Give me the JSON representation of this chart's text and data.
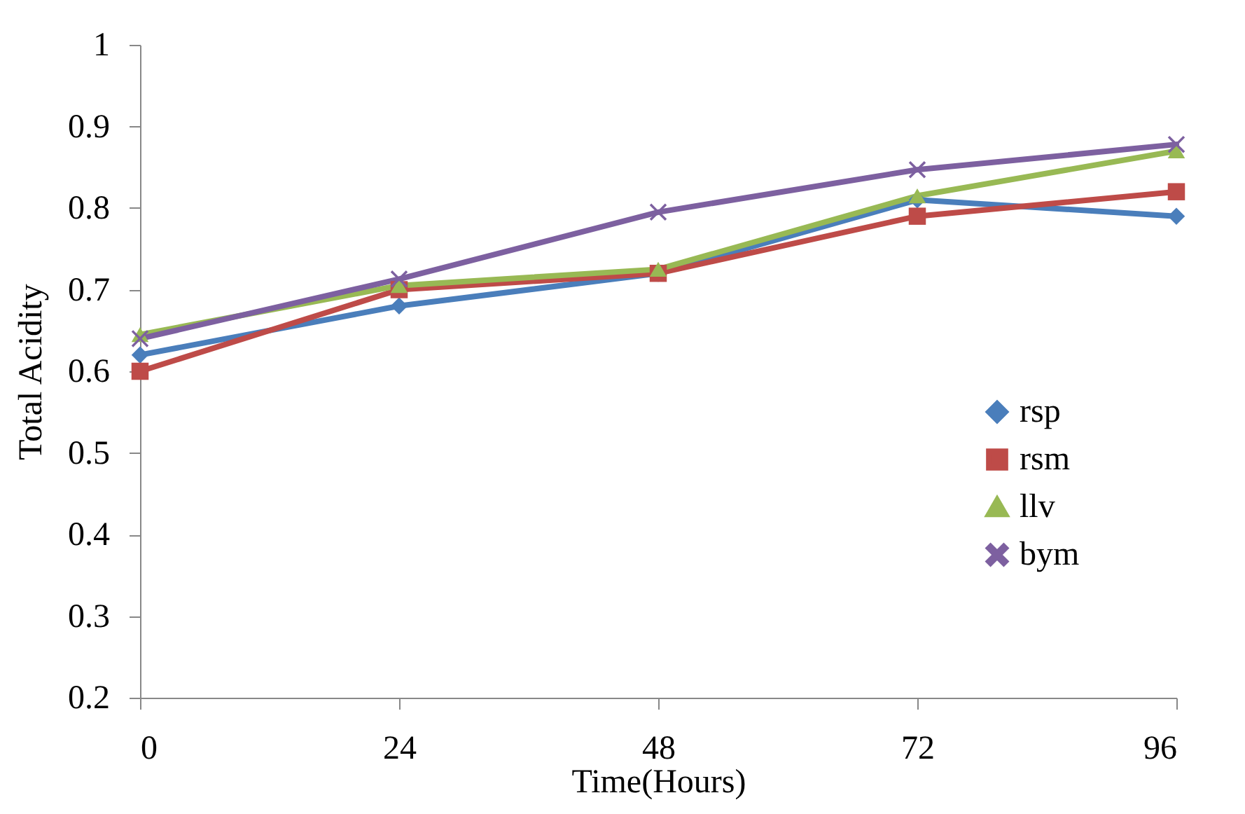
{
  "chart_data": {
    "type": "line",
    "xlabel": "Time(Hours)",
    "ylabel": "Total Acidity",
    "x": [
      0,
      24,
      48,
      72,
      96
    ],
    "series": [
      {
        "name": "rsp",
        "color": "#4a7ebb",
        "marker": "diamond",
        "values": [
          0.62,
          0.68,
          0.72,
          0.81,
          0.79
        ]
      },
      {
        "name": "rsm",
        "color": "#be4b48",
        "marker": "square",
        "values": [
          0.6,
          0.7,
          0.72,
          0.79,
          0.82
        ]
      },
      {
        "name": "llv",
        "color": "#98b954",
        "marker": "triangle",
        "values": [
          0.645,
          0.705,
          0.725,
          0.815,
          0.87
        ]
      },
      {
        "name": "bym",
        "color": "#7d60a0",
        "marker": "cross",
        "values": [
          0.64,
          0.713,
          0.795,
          0.847,
          0.878
        ]
      }
    ],
    "xlim": [
      0,
      96
    ],
    "xticks": [
      0,
      24,
      48,
      72,
      96
    ],
    "ylim": [
      0.2,
      1
    ],
    "yticks": [
      0.2,
      0.3,
      0.4,
      0.5,
      0.6,
      0.7,
      0.8,
      0.9,
      1
    ],
    "grid": false,
    "legend": "right",
    "line_style": "solid"
  }
}
